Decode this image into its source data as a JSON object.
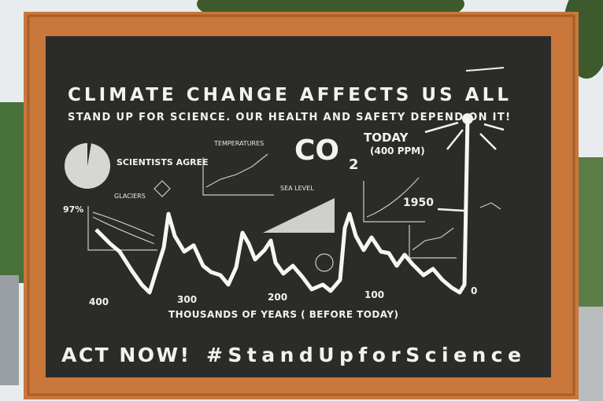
{
  "sign": {
    "title": "CLIMATE CHANGE AFFECTS US ALL",
    "subtitle": "STAND UP FOR SCIENCE. OUR HEALTH AND SAFETY DEPEND ON IT!",
    "scientists_agree": "SCIENTISTS AGREE",
    "percent": "97%",
    "temperatures": "TEMPERATURES",
    "glaciers": "GLACIERS",
    "sea_level": "SEA LEVEL",
    "co2": {
      "main": "CO",
      "sub": "2"
    },
    "today": "TODAY",
    "ppm": "(400 PPM)",
    "year_1950": "1950",
    "axis_ticks": [
      "400",
      "300",
      "200",
      "100",
      "0"
    ],
    "axis_label": "THOUSANDS OF YEARS ( BEFORE TODAY)",
    "act_now": "ACT NOW!",
    "hashtag": "#StandUpforScience"
  }
}
